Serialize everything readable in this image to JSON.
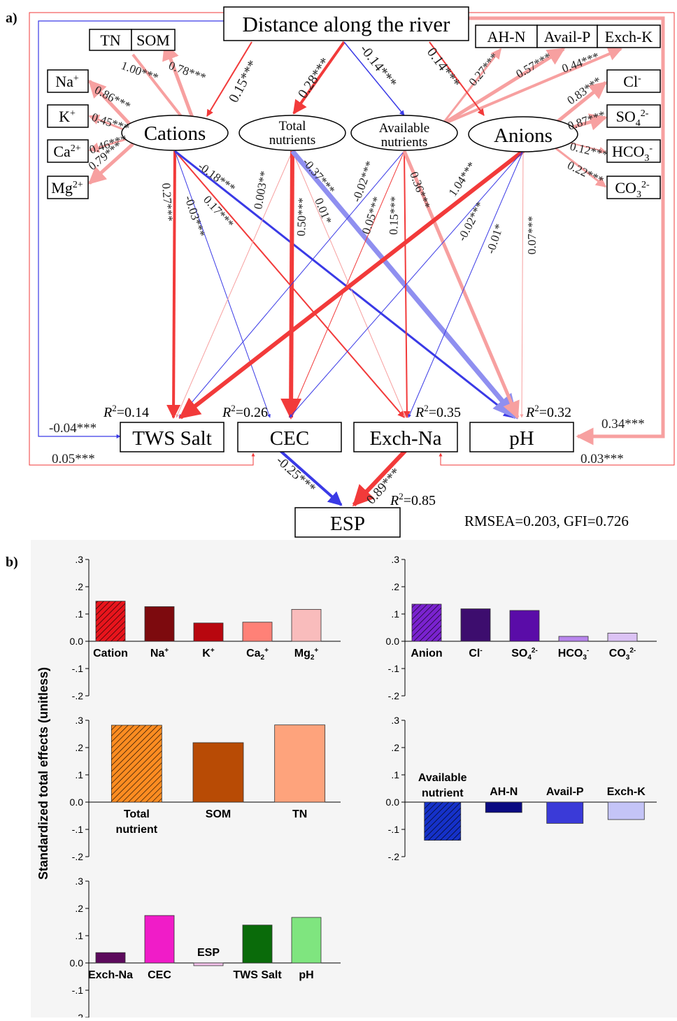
{
  "panel_a": {
    "panel_label": "a)",
    "nodes": {
      "distance": "Distance along the river",
      "cations": "Cations",
      "total_nutrients_1": "Total",
      "total_nutrients_2": "nutrients",
      "available_nutrients_1": "Available",
      "available_nutrients_2": "nutrients",
      "anions": "Anions",
      "tn": "TN",
      "som": "SOM",
      "ahn": "AH-N",
      "availp": "Avail-P",
      "exchk": "Exch-K",
      "na": "Na+",
      "k": "K+",
      "ca": "Ca2+",
      "mg": "Mg2+",
      "cl": "Cl-",
      "so4": "SO42-",
      "hco3": "HCO3-",
      "co3": "CO32-",
      "tws_salt": "TWS Salt",
      "cec": "CEC",
      "exch_na": "Exch-Na",
      "ph": "pH",
      "esp": "ESP"
    },
    "coefficients": {
      "tn_som": "1.00***",
      "som_cat": "0.78***",
      "na": "0.86***",
      "k": "0.45***",
      "ca": "0.46***",
      "mg": "0.79***",
      "dist_cat": "0.15***",
      "dist_tot": "0.28***",
      "dist_avail": "-0.14***",
      "dist_an": "0.14***",
      "ahn": "0.27***",
      "availp": "0.57***",
      "exchk": "0.44***",
      "cl": "0.83***",
      "so4": "0.87***",
      "hco3": "0.12***",
      "co3": "0.22***",
      "cat_tws": "0.27***",
      "cat_cec": "-0.03***",
      "cat_exna": "0.17***",
      "cat_ph": "-0.18***",
      "tot_tws": "0.003**",
      "tot_cec": "0.50***",
      "tot_exna": "0.01*",
      "tot_ph": "-0.37***",
      "av_tws": "-0.02***",
      "av_cec": "0.05***",
      "av_exna": "0.15***",
      "av_ph": "0.36***",
      "an_tws": "1.04***",
      "an_cec": "-0.02***",
      "an_exna": "-0.01*",
      "an_ph": "0.07***",
      "dist_tws": "-0.04***",
      "dist_cec": "0.05***",
      "dist_ph_top": "0.34***",
      "dist_ph_bottom": "0.03***",
      "cec_esp": "-0.25***",
      "exna_esp": "0.89***"
    },
    "r2": {
      "label": "R",
      "sup": "2",
      "tws": "=0.14",
      "cec": "=0.26",
      "exna": "=0.35",
      "ph": "=0.32",
      "esp": "=0.85"
    },
    "fit": "RMSEA=0.203, GFI=0.726",
    "colors": {
      "positive": "#f23a3a",
      "positive_light": "#f7a0a0",
      "negative": "#3a3ae6",
      "negative_light": "#8f8ff0"
    }
  },
  "panel_b": {
    "panel_label": "b)",
    "ylabel": "Standardized total effects (unitless)",
    "tick_labels": [
      ".3",
      ".2",
      ".1",
      "0.0",
      "-.1",
      "-.2"
    ]
  },
  "chart_data": [
    {
      "type": "bar",
      "categories": [
        "Cation",
        "Na+",
        "K+",
        "Ca2+",
        "Mg2+"
      ],
      "values": [
        0.147,
        0.127,
        0.067,
        0.07,
        0.117
      ],
      "colors": [
        "#e8141c",
        "#7d0a0e",
        "#b8070f",
        "#ff8177",
        "#f9bcbc"
      ],
      "hatched": [
        true,
        false,
        false,
        false,
        false
      ],
      "ylim": [
        -0.2,
        0.3
      ],
      "ylabel": "Standardized total effects (unitless)"
    },
    {
      "type": "bar",
      "categories": [
        "Anion",
        "Cl-",
        "SO42-",
        "HCO3-",
        "CO32-"
      ],
      "values": [
        0.136,
        0.119,
        0.113,
        0.018,
        0.03
      ],
      "colors": [
        "#7a22cf",
        "#3d0d6e",
        "#5a0ca8",
        "#b886ec",
        "#dcc3f5"
      ],
      "hatched": [
        true,
        false,
        false,
        false,
        false
      ],
      "ylim": [
        -0.2,
        0.3
      ],
      "ylabel": "Standardized total effects (unitless)"
    },
    {
      "type": "bar",
      "categories": [
        "Total nutrient",
        "SOM",
        "TN"
      ],
      "values": [
        0.282,
        0.218,
        0.283
      ],
      "colors": [
        "#ff8c21",
        "#b84b05",
        "#fea37c"
      ],
      "hatched": [
        true,
        false,
        false
      ],
      "ylim": [
        -0.2,
        0.3
      ],
      "ylabel": "Standardized total effects (unitless)"
    },
    {
      "type": "bar",
      "categories": [
        "Available nutrient",
        "AH-N",
        "Avail-P",
        "Exch-K"
      ],
      "values": [
        -0.14,
        -0.038,
        -0.078,
        -0.064
      ],
      "colors": [
        "#1531c9",
        "#0a0a82",
        "#3a3ad8",
        "#c4c4f7"
      ],
      "hatched": [
        true,
        false,
        false,
        false
      ],
      "ylim": [
        -0.2,
        0.3
      ],
      "ylabel": "Standardized total effects (unitless)"
    },
    {
      "type": "bar",
      "categories": [
        "Exch-Na",
        "CEC",
        "ESP",
        "TWS Salt",
        "pH"
      ],
      "values": [
        0.038,
        0.174,
        -0.01,
        0.139,
        0.167
      ],
      "colors": [
        "#5c0a5c",
        "#f01cc8",
        "#f5c3ec",
        "#0a6b0a",
        "#7fe57f"
      ],
      "hatched": [
        false,
        false,
        false,
        false,
        false
      ],
      "ylim": [
        -0.2,
        0.3
      ],
      "ylabel": "Standardized total effects (unitless)"
    }
  ]
}
